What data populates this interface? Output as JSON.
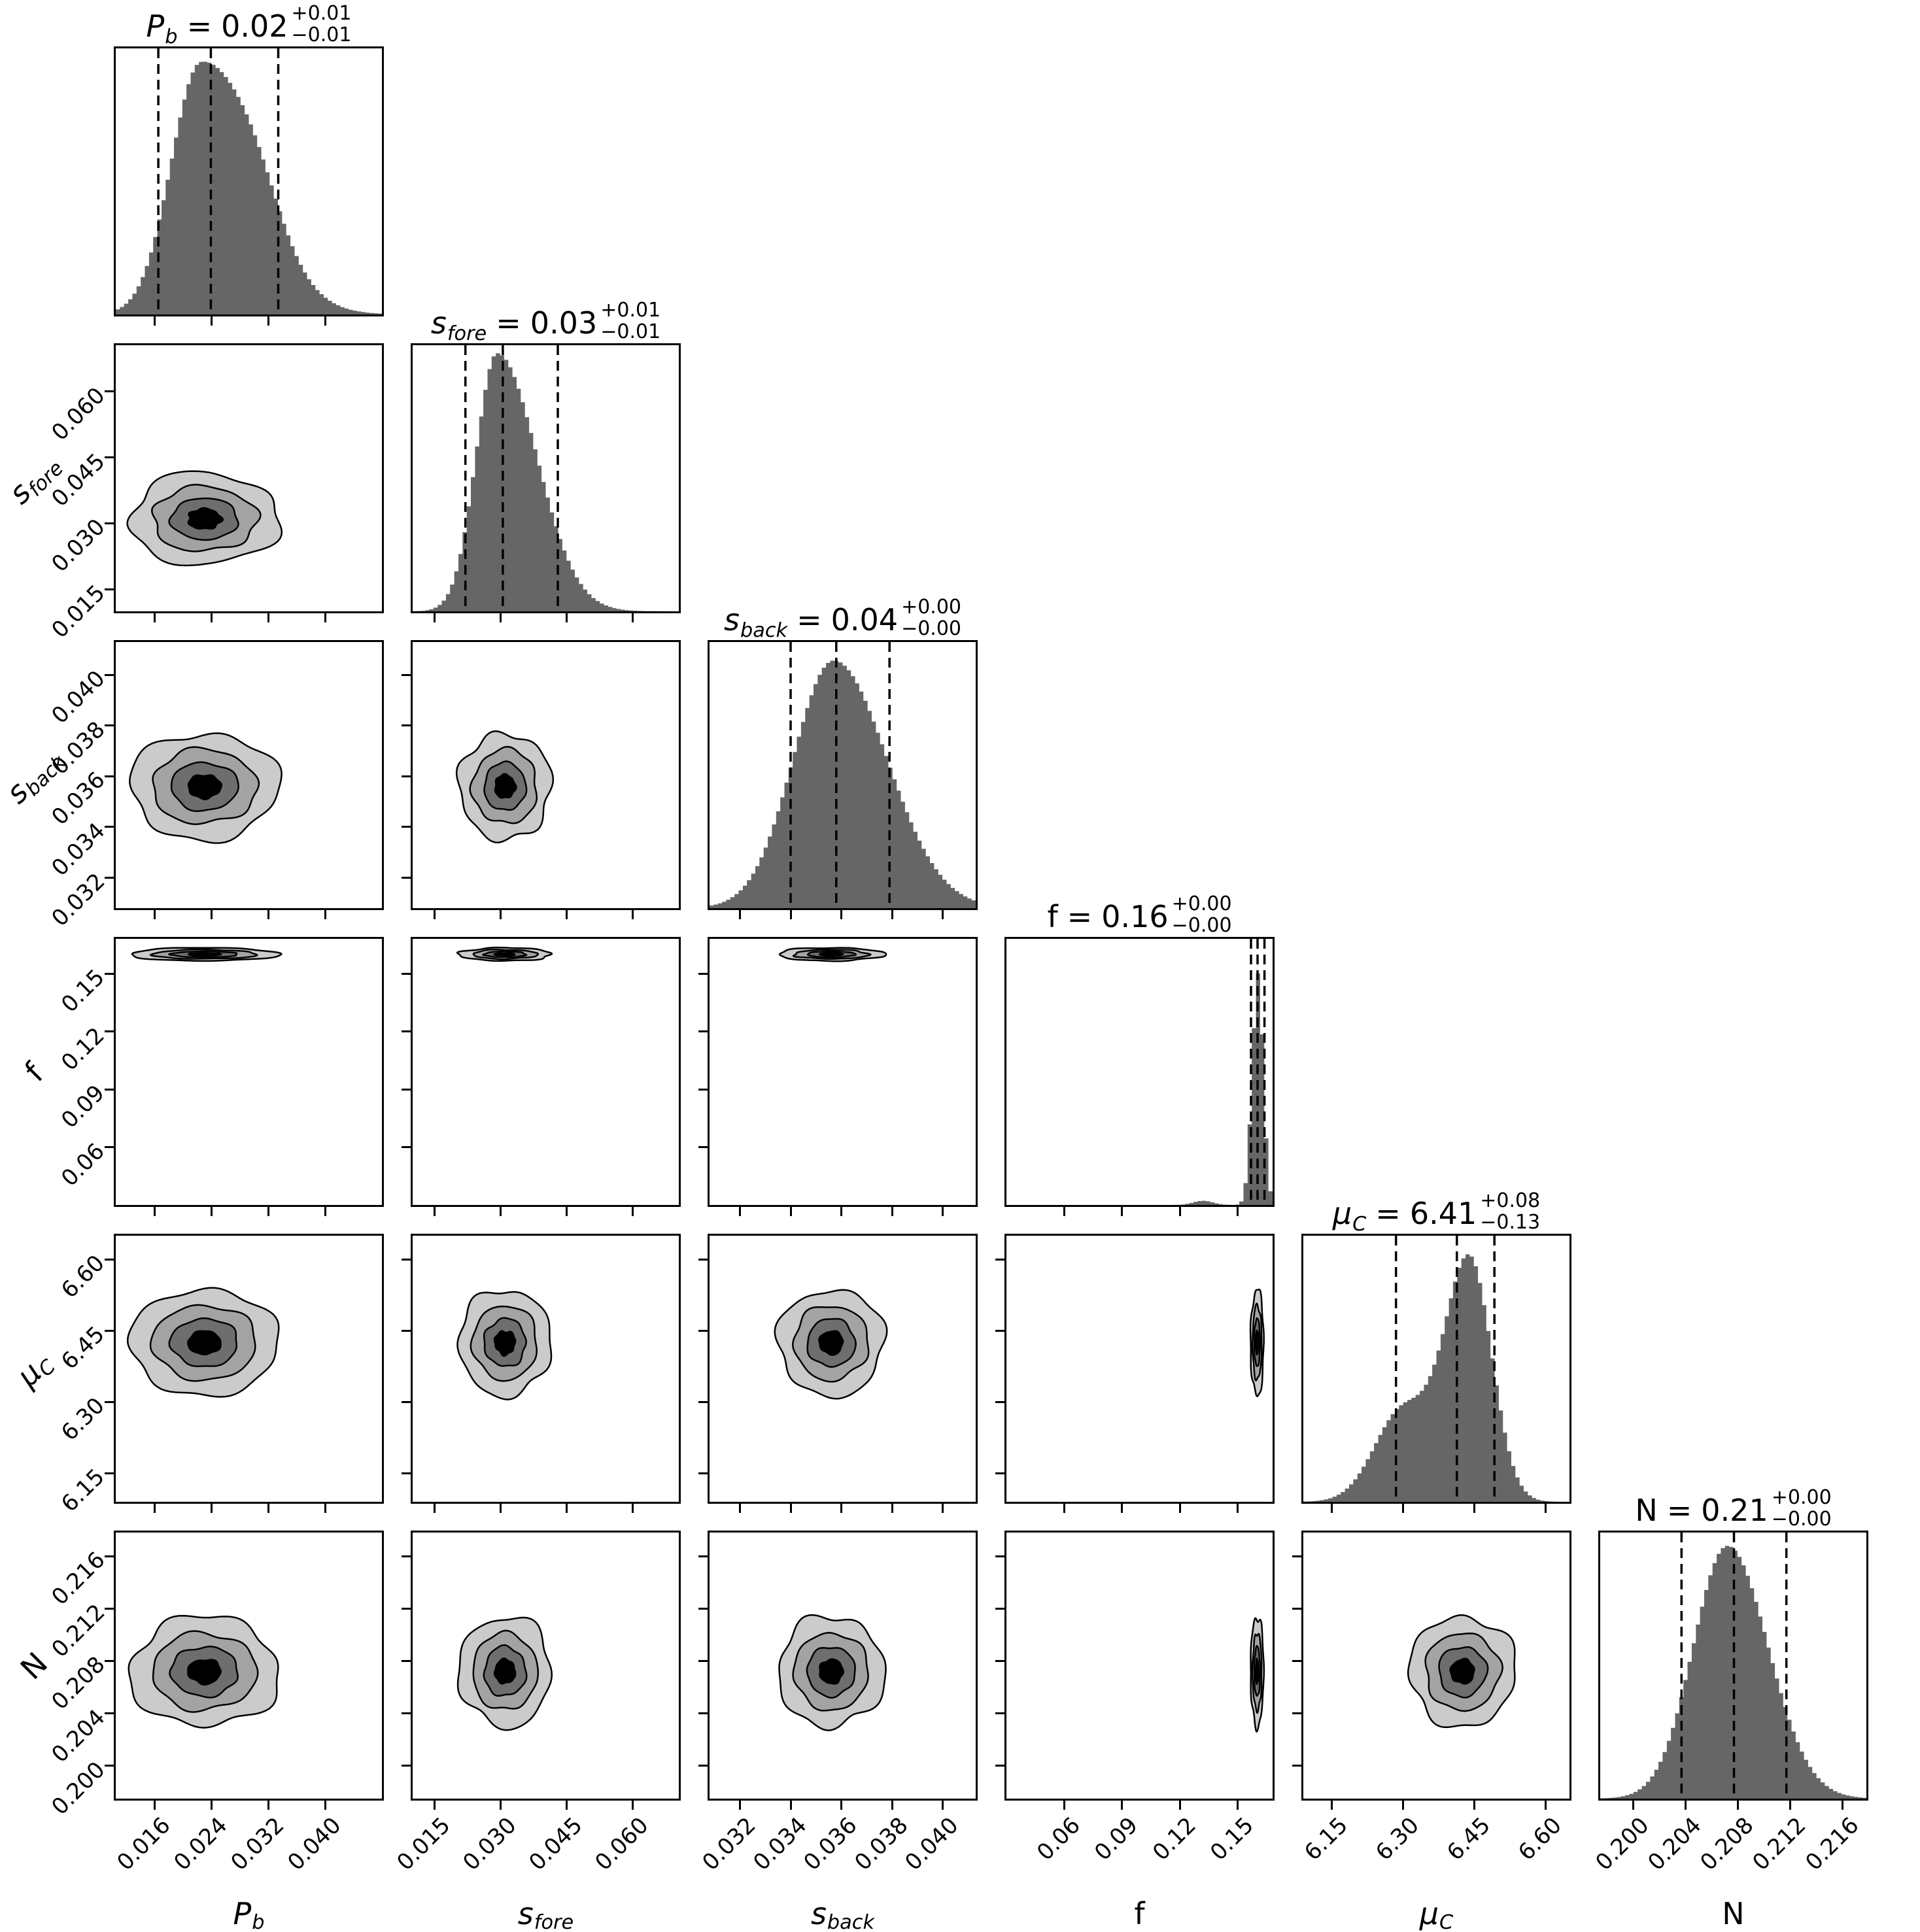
{
  "chart_data": {
    "type": "corner_plot",
    "description": "Corner plot of posterior distributions: diagonal panels show 1D marginal densities with dashed 16th/50th/84th percentile lines; off-diagonal panels show 2D contours (4 grayscale levels).",
    "legend_position": "none",
    "grid": false,
    "colors": {
      "background": "#ffffff",
      "hist_fill": "#666666",
      "contour_fills": [
        "#cbcbcb",
        "#a3a3a3",
        "#6e6e6e",
        "#000000"
      ],
      "line": "#000000"
    },
    "equals": "=",
    "levels": {
      "scales": [
        1.0,
        0.7,
        0.45,
        0.22
      ],
      "wobble": [
        0.05,
        0.045,
        0.04,
        0.06
      ]
    },
    "parameters": [
      {
        "id": "P_b",
        "label_main": "P",
        "label_sub": "b",
        "label_style": "italic",
        "title_value": "0.02",
        "title_plus": "+0.01",
        "title_minus": "−0.01",
        "range": [
          0.0105,
          0.048
        ],
        "tick_values": [
          0.016,
          0.024,
          0.032,
          0.04
        ],
        "tick_labels": [
          "0.016",
          "0.024",
          "0.032",
          "0.040"
        ],
        "quantiles": [
          0.0165,
          0.0239,
          0.0334
        ],
        "hist": {
          "peak": 0.0225,
          "sigma_left": 0.0042,
          "sigma_right": 0.0075,
          "shoulder_pos": 0.0305,
          "shoulder_amp": 0.12,
          "shoulder_sigma": 0.0035,
          "height_frac": 0.95
        },
        "center2d": 0.023,
        "extent2d": 0.0105
      },
      {
        "id": "s_fore",
        "label_main": "s",
        "label_sub": "fore",
        "label_style": "italic",
        "title_value": "0.03",
        "title_plus": "+0.01",
        "title_minus": "−0.01",
        "range": [
          0.01,
          0.0705
        ],
        "tick_values": [
          0.015,
          0.03,
          0.045,
          0.06
        ],
        "tick_labels": [
          "0.015",
          "0.030",
          "0.045",
          "0.060"
        ],
        "quantiles": [
          0.022,
          0.0305,
          0.043
        ],
        "hist": {
          "peak": 0.0292,
          "sigma_left": 0.0048,
          "sigma_right": 0.009,
          "shoulder_pos": null,
          "shoulder_amp": 0,
          "shoulder_sigma": 1,
          "height_frac": 0.97
        },
        "center2d": 0.031,
        "extent2d": 0.0105
      },
      {
        "id": "s_back",
        "label_main": "s",
        "label_sub": "back",
        "label_style": "italic",
        "title_value": "0.04",
        "title_plus": "+0.00",
        "title_minus": "−0.00",
        "range": [
          0.0308,
          0.0413
        ],
        "tick_values": [
          0.032,
          0.034,
          0.036,
          0.038,
          0.04
        ],
        "tick_labels": [
          "0.032",
          "0.034",
          "0.036",
          "0.038",
          "0.040"
        ],
        "quantiles": [
          0.034,
          0.0358,
          0.0379
        ],
        "hist": {
          "peak": 0.0357,
          "sigma_left": 0.0016,
          "sigma_right": 0.0021,
          "shoulder_pos": null,
          "shoulder_amp": 0,
          "shoulder_sigma": 1,
          "height_frac": 0.93
        },
        "center2d": 0.0356,
        "extent2d": 0.0021
      },
      {
        "id": "f",
        "label_main": "f",
        "label_sub": "",
        "label_style": "normal",
        "title_value": "0.16",
        "title_plus": "+0.00",
        "title_minus": "−0.00",
        "range": [
          0.03,
          0.168
        ],
        "tick_values": [
          0.06,
          0.09,
          0.12,
          0.15
        ],
        "tick_labels": [
          "0.06",
          "0.09",
          "0.12",
          "0.15"
        ],
        "quantiles": [
          0.1568,
          0.1602,
          0.1638
        ],
        "hist": {
          "peak": 0.1605,
          "sigma_left": 0.003,
          "sigma_right": 0.0027,
          "shoulder_pos": 0.132,
          "shoulder_amp": 0.018,
          "shoulder_sigma": 0.005,
          "height_frac": 0.87
        },
        "center2d": 0.16,
        "extent2d": 0.0034
      },
      {
        "id": "mu_C",
        "label_main": "μ",
        "label_sub": "C",
        "label_style": "italic",
        "title_value": "6.41",
        "title_plus": "+0.08",
        "title_minus": "−0.13",
        "range": [
          6.09,
          6.65
        ],
        "tick_values": [
          6.15,
          6.3,
          6.45,
          6.6
        ],
        "tick_labels": [
          "6.15",
          "6.30",
          "6.45",
          "6.60"
        ],
        "quantiles": [
          6.285,
          6.413,
          6.492
        ],
        "hist": {
          "peak": 6.44,
          "sigma_left": 0.052,
          "sigma_right": 0.047,
          "shoulder_pos": 6.3,
          "shoulder_amp": 0.38,
          "shoulder_sigma": 0.06,
          "height_frac": 0.93
        },
        "center2d": 6.425,
        "extent2d": 0.112
      },
      {
        "id": "N",
        "label_main": "N",
        "label_sub": "",
        "label_style": "normal",
        "title_value": "0.21",
        "title_plus": "+0.00",
        "title_minus": "−0.00",
        "range": [
          0.1975,
          0.2178
        ],
        "tick_values": [
          0.2,
          0.204,
          0.208,
          0.212,
          0.216
        ],
        "tick_labels": [
          "0.200",
          "0.204",
          "0.208",
          "0.212",
          "0.216"
        ],
        "quantiles": [
          0.2037,
          0.2077,
          0.2117
        ],
        "hist": {
          "peak": 0.2072,
          "sigma_left": 0.0026,
          "sigma_right": 0.0031,
          "shoulder_pos": null,
          "shoulder_amp": 0,
          "shoulder_sigma": 1,
          "height_frac": 0.95
        },
        "center2d": 0.2072,
        "extent2d": 0.0042
      }
    ]
  }
}
